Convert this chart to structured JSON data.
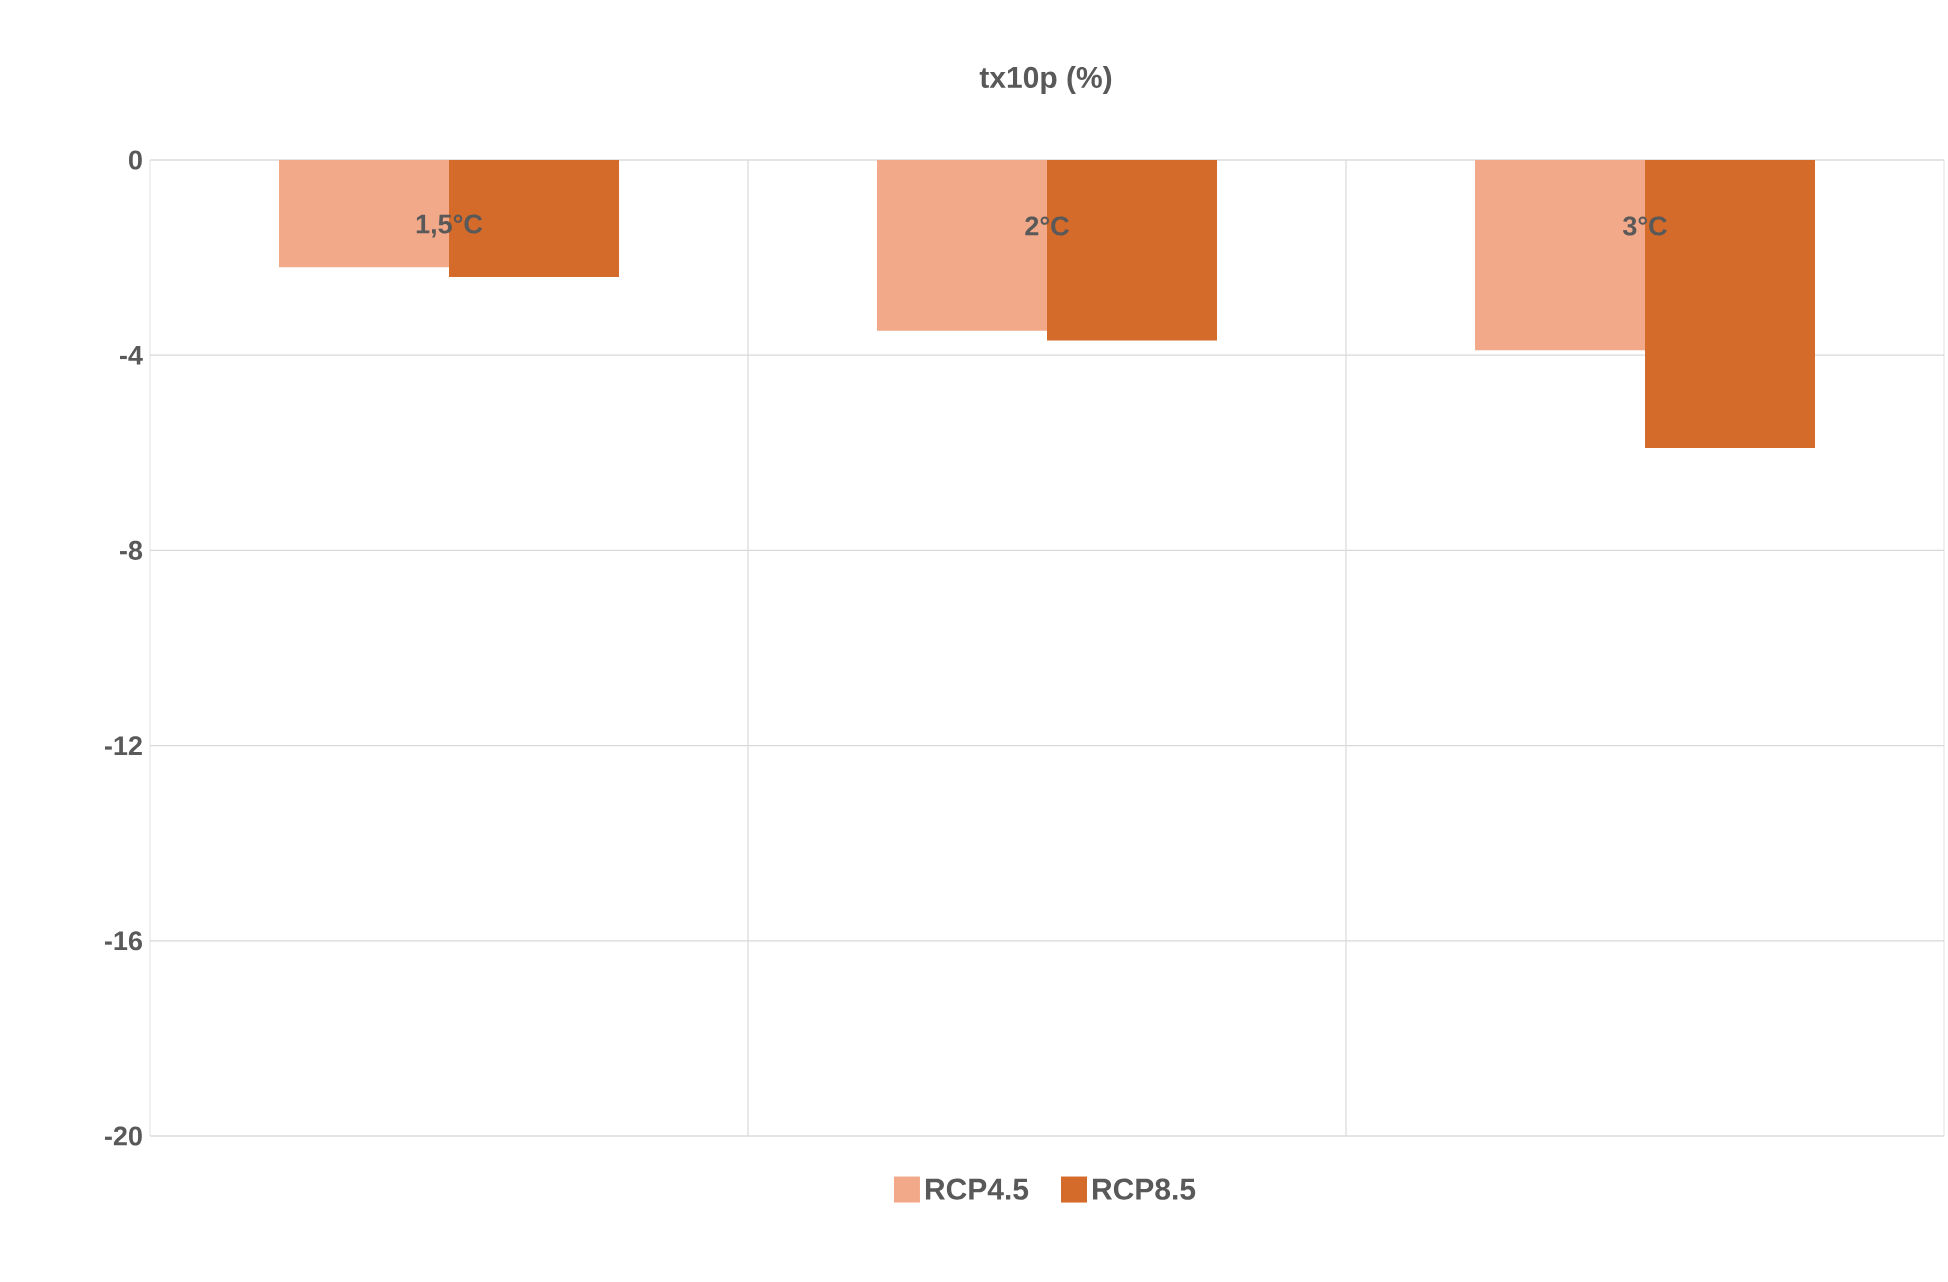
{
  "chart_data": {
    "type": "bar",
    "title": "tx10p (%)",
    "categories": [
      "1,5°C",
      "2°C",
      "3°C"
    ],
    "series": [
      {
        "name": "RCP4.5",
        "color": "#f2a98a",
        "values": [
          -2.2,
          -3.5,
          -3.9
        ]
      },
      {
        "name": "RCP8.5",
        "color": "#d46b2a",
        "values": [
          -2.4,
          -3.7,
          -5.9
        ]
      }
    ],
    "ylim": [
      -20,
      0
    ],
    "yticks": [
      -20,
      -16,
      -12,
      -8,
      -4,
      0
    ],
    "grid": true,
    "legend": "bottom"
  }
}
